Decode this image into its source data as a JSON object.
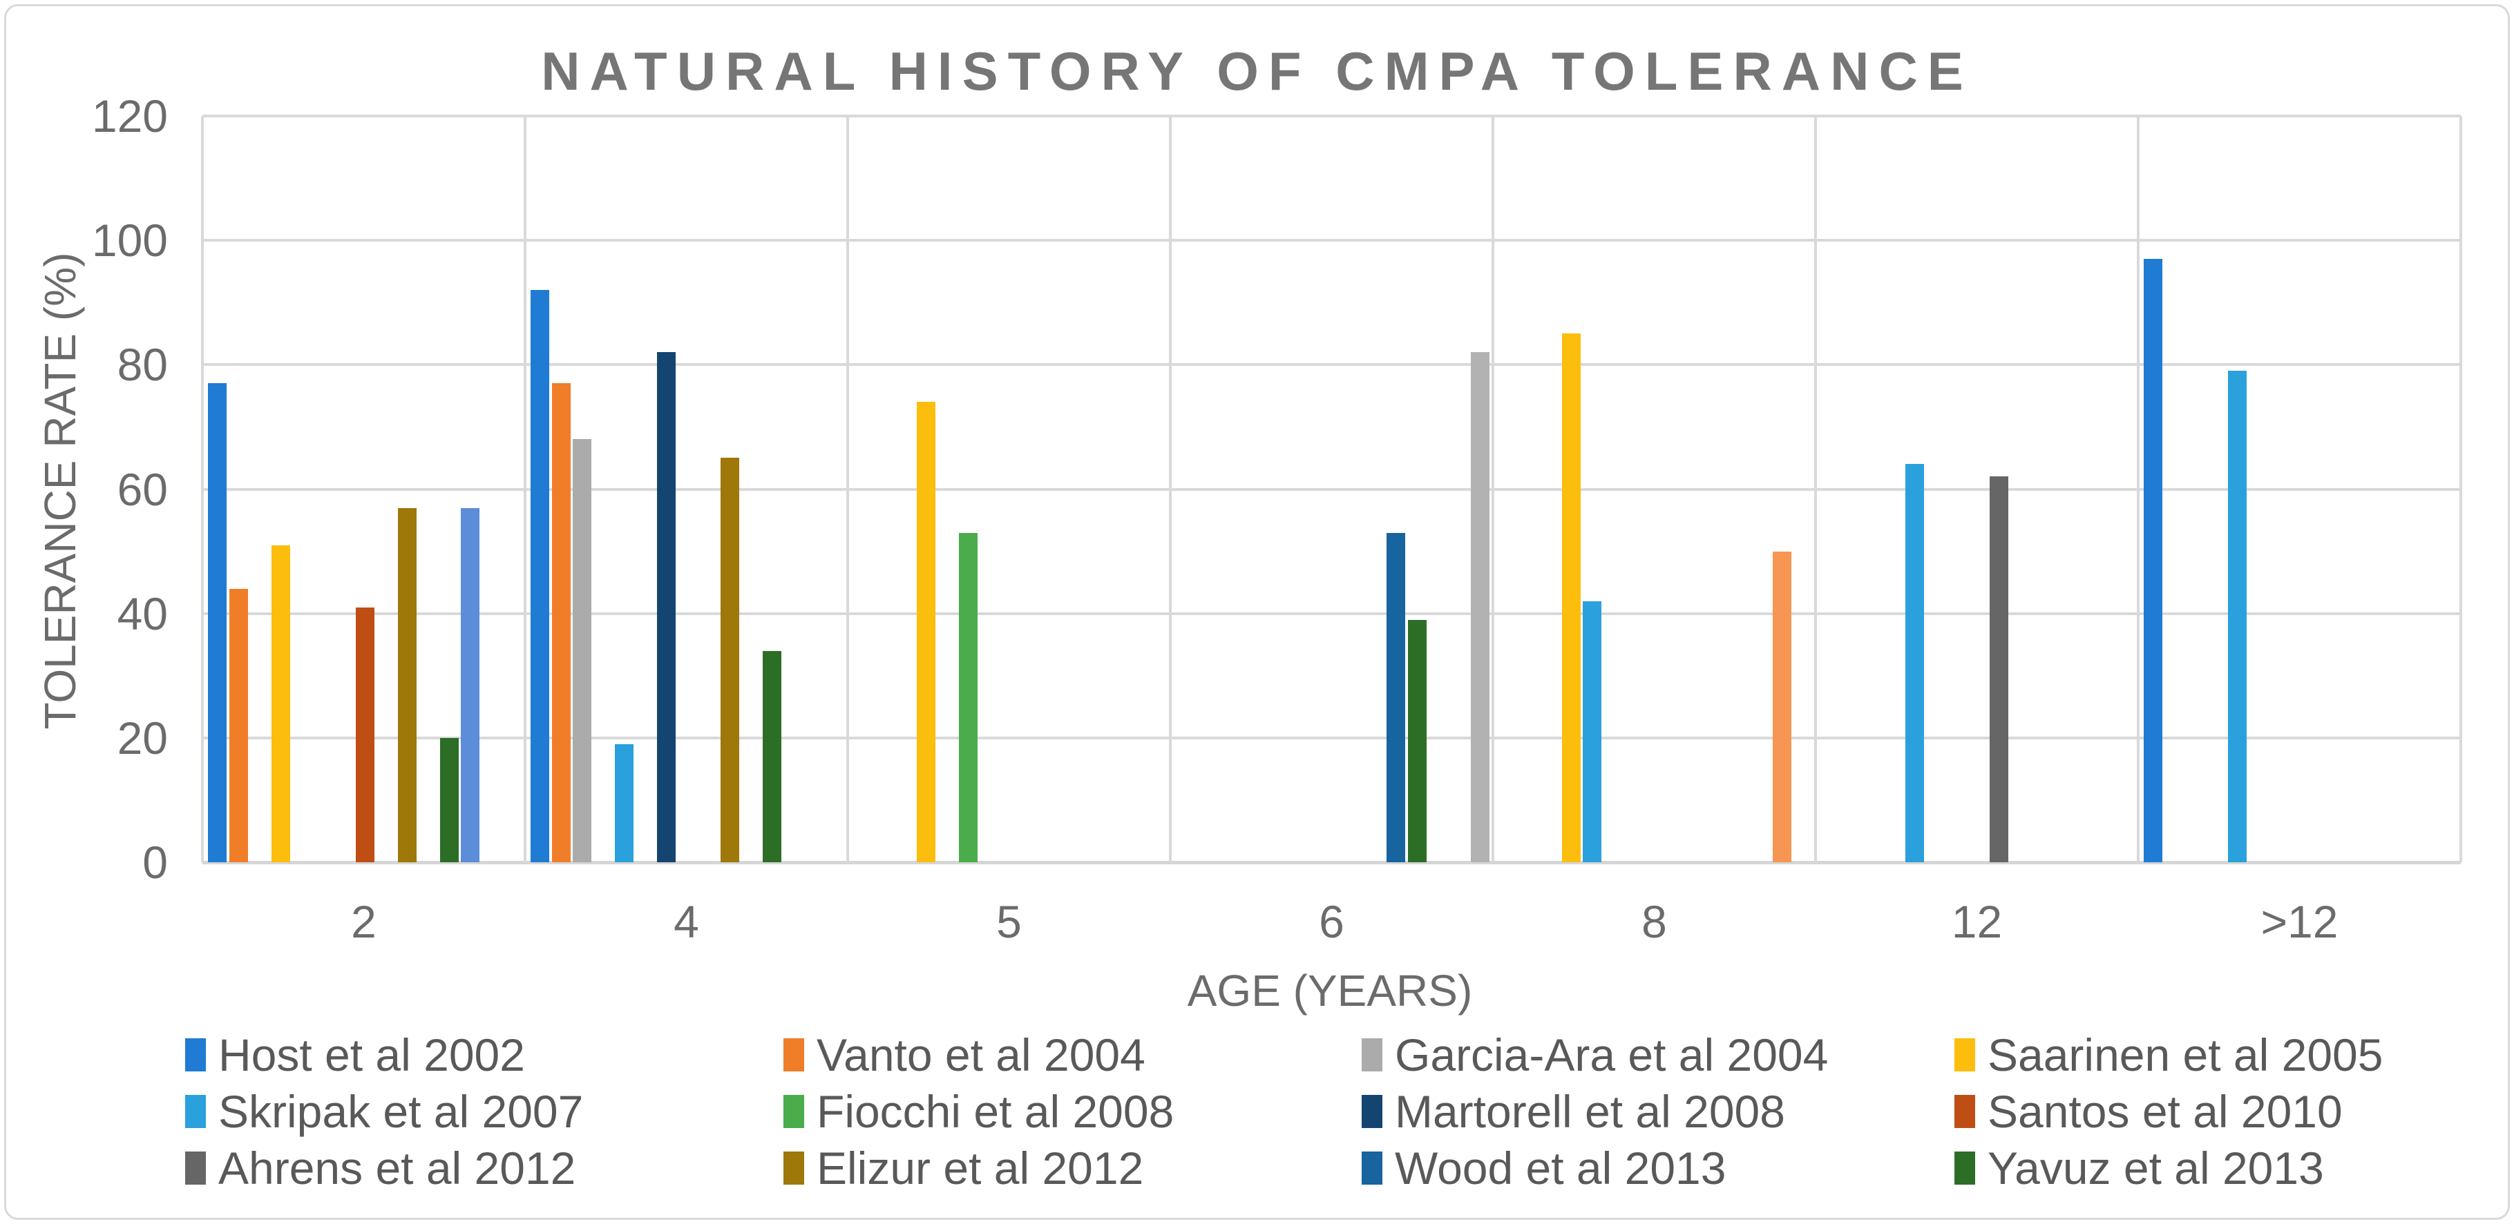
{
  "chart_data": {
    "type": "bar",
    "title": "NATURAL HISTORY OF CMPA TOLERANCE",
    "xlabel": "AGE (YEARS)",
    "ylabel": "TOLERANCE RATE (%)",
    "ylim": [
      0,
      120
    ],
    "yticks": [
      0,
      20,
      40,
      60,
      80,
      100,
      120
    ],
    "categories": [
      "2",
      "4",
      "5",
      "6",
      "8",
      "12",
      ">12"
    ],
    "grid": true,
    "legend_position": "bottom",
    "legend_columns": 4,
    "series": [
      {
        "name": "Host et al 2002",
        "color": "#1f7bd3",
        "slot": 0,
        "values": {
          "2": 77,
          "4": 92,
          ">12": 97
        }
      },
      {
        "name": "Vanto et al 2004",
        "color": "#f07d28",
        "slot": 1,
        "values": {
          "2": 44,
          "4": 77
        }
      },
      {
        "name": "Garcia-Ara et al 2004",
        "color": "#ababab",
        "slot": 2,
        "values": {
          "4": 68
        }
      },
      {
        "name": "Saarinen et al 2005",
        "color": "#fdbd0d",
        "slot": 3,
        "values": {
          "2": 51,
          "5": 74,
          "8": 85
        }
      },
      {
        "name": "Skripak et al 2007",
        "color": "#2aa0dc",
        "slot": 4,
        "values": {
          "4": 19,
          "8": 42,
          "12": 64,
          ">12": 79
        }
      },
      {
        "name": "Fiocchi et al 2008",
        "color": "#4aac4a",
        "slot": 5,
        "values": {
          "5": 53
        }
      },
      {
        "name": "Martorell et al 2008",
        "color": "#134570",
        "slot": 6,
        "values": {
          "4": 82
        }
      },
      {
        "name": "Santos et al 2010",
        "color": "#bf4e15",
        "slot": 7,
        "values": {
          "2": 41
        }
      },
      {
        "name": "Ahrens et al 2012",
        "color": "#666666",
        "slot": 8,
        "values": {
          "12": 62
        }
      },
      {
        "name": "Elizur et al 2012",
        "color": "#9e7809",
        "slot": 9,
        "values": {
          "2": 57,
          "4": 65
        }
      },
      {
        "name": "Wood et al 2013",
        "color": "#17649f",
        "slot": 10,
        "values": {
          "6": 53
        }
      },
      {
        "name": "Yavuz et al 2013",
        "color": "#2d6e27",
        "slot": 11,
        "values": {
          "2": 20,
          "4": 34,
          "6": 39
        }
      }
    ],
    "unlabeled_bars": [
      {
        "category": "2",
        "value": 57,
        "color": "#5c8dd8",
        "slot": 12,
        "note": "no legend entry"
      },
      {
        "category": "8",
        "value": 50,
        "color": "#f79652",
        "slot": 13,
        "note": "no legend entry"
      },
      {
        "category": "6",
        "value": 82,
        "color": "#b2b2b2",
        "slot": 14,
        "note": "no legend entry"
      }
    ]
  }
}
